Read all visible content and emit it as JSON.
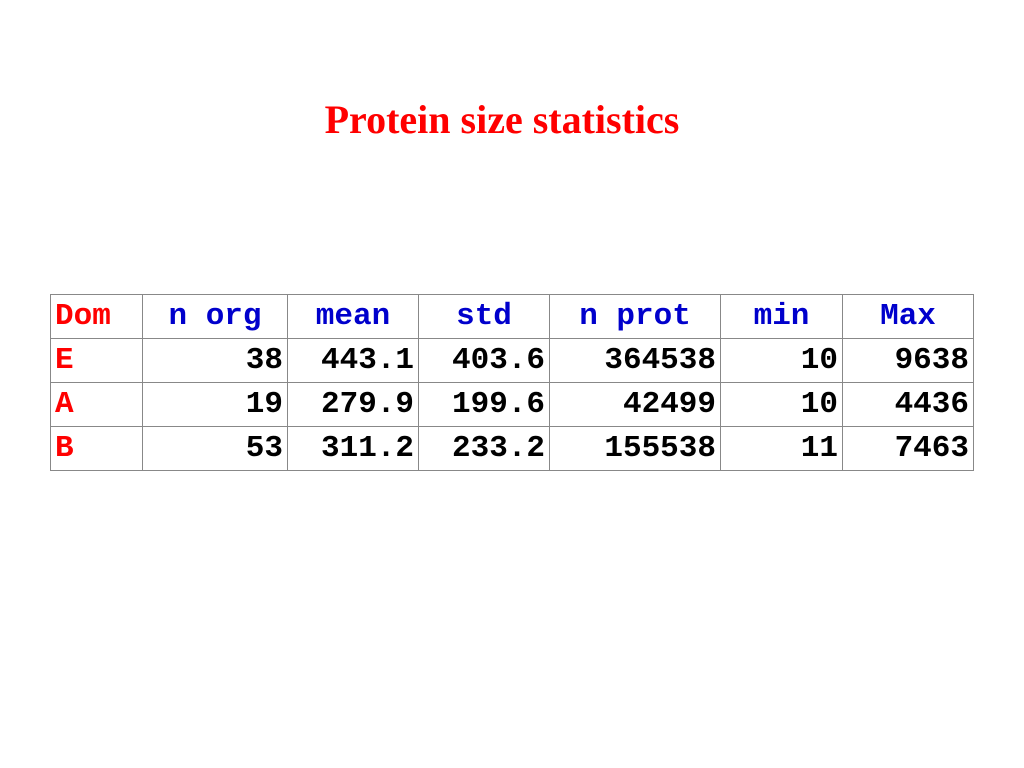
{
  "title": "Protein size statistics",
  "colors": {
    "title": "#ff0000",
    "header_text": "#0000cc",
    "domain_text": "#ff0000",
    "value_text": "#000000",
    "border": "#888888"
  },
  "table": {
    "headers": [
      "Dom",
      "n org",
      "mean",
      "std",
      "n prot",
      "min",
      "Max"
    ],
    "rows": [
      [
        "E",
        "38",
        "443.1",
        "403.6",
        "364538",
        "10",
        "9638"
      ],
      [
        "A",
        "19",
        "279.9",
        "199.6",
        "42499",
        "10",
        "4436"
      ],
      [
        "B",
        "53",
        "311.2",
        "233.2",
        "155538",
        "11",
        "7463"
      ]
    ]
  }
}
